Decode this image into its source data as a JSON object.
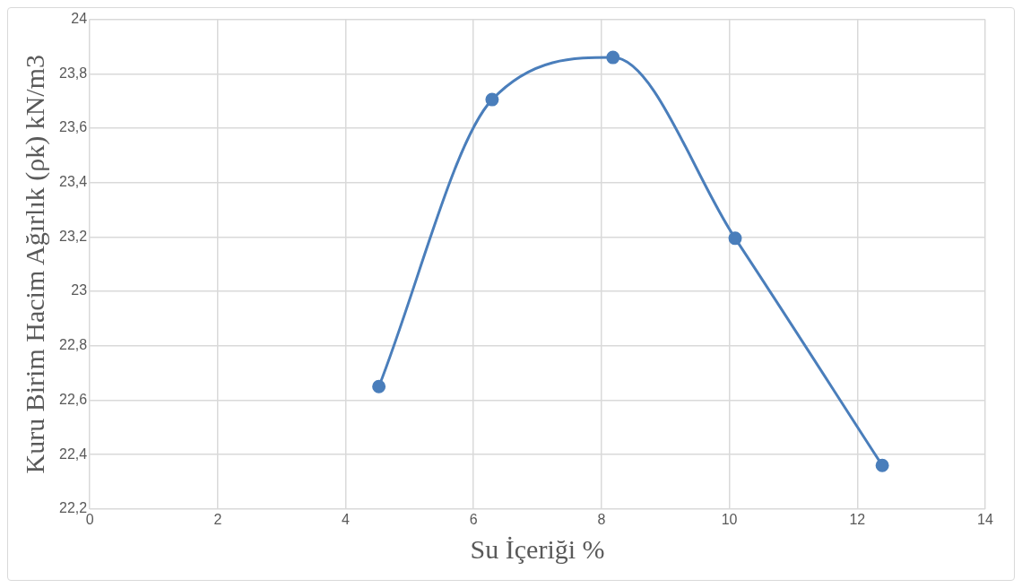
{
  "chart_data": {
    "type": "line",
    "xlabel": "Su İçeriği %",
    "ylabel": "Kuru Birim Hacim Ağırlık (ρk) kN/m3",
    "x": [
      4.52,
      6.29,
      8.18,
      10.09,
      12.39
    ],
    "series": [
      {
        "color": "#4a7ebb",
        "values": [
          22.65,
          23.705,
          23.86,
          23.195,
          22.36
        ]
      }
    ],
    "xlim": [
      0,
      14
    ],
    "xticks": [
      0,
      2,
      4,
      6,
      8,
      10,
      12,
      14
    ],
    "ylim": [
      22.2,
      24
    ],
    "yticks": [
      {
        "value": 22.2,
        "label": "22,2"
      },
      {
        "value": 22.4,
        "label": "22,4"
      },
      {
        "value": 22.6,
        "label": "22,6"
      },
      {
        "value": 22.8,
        "label": "22,8"
      },
      23,
      {
        "value": 23.2,
        "label": "23,2"
      },
      {
        "value": 23.4,
        "label": "23,4"
      },
      {
        "value": 23.6,
        "label": "23,6"
      },
      {
        "value": 23.8,
        "label": "23,8"
      },
      24
    ],
    "grid": true,
    "legend": false,
    "marker": "circle",
    "line_style": "solid"
  }
}
